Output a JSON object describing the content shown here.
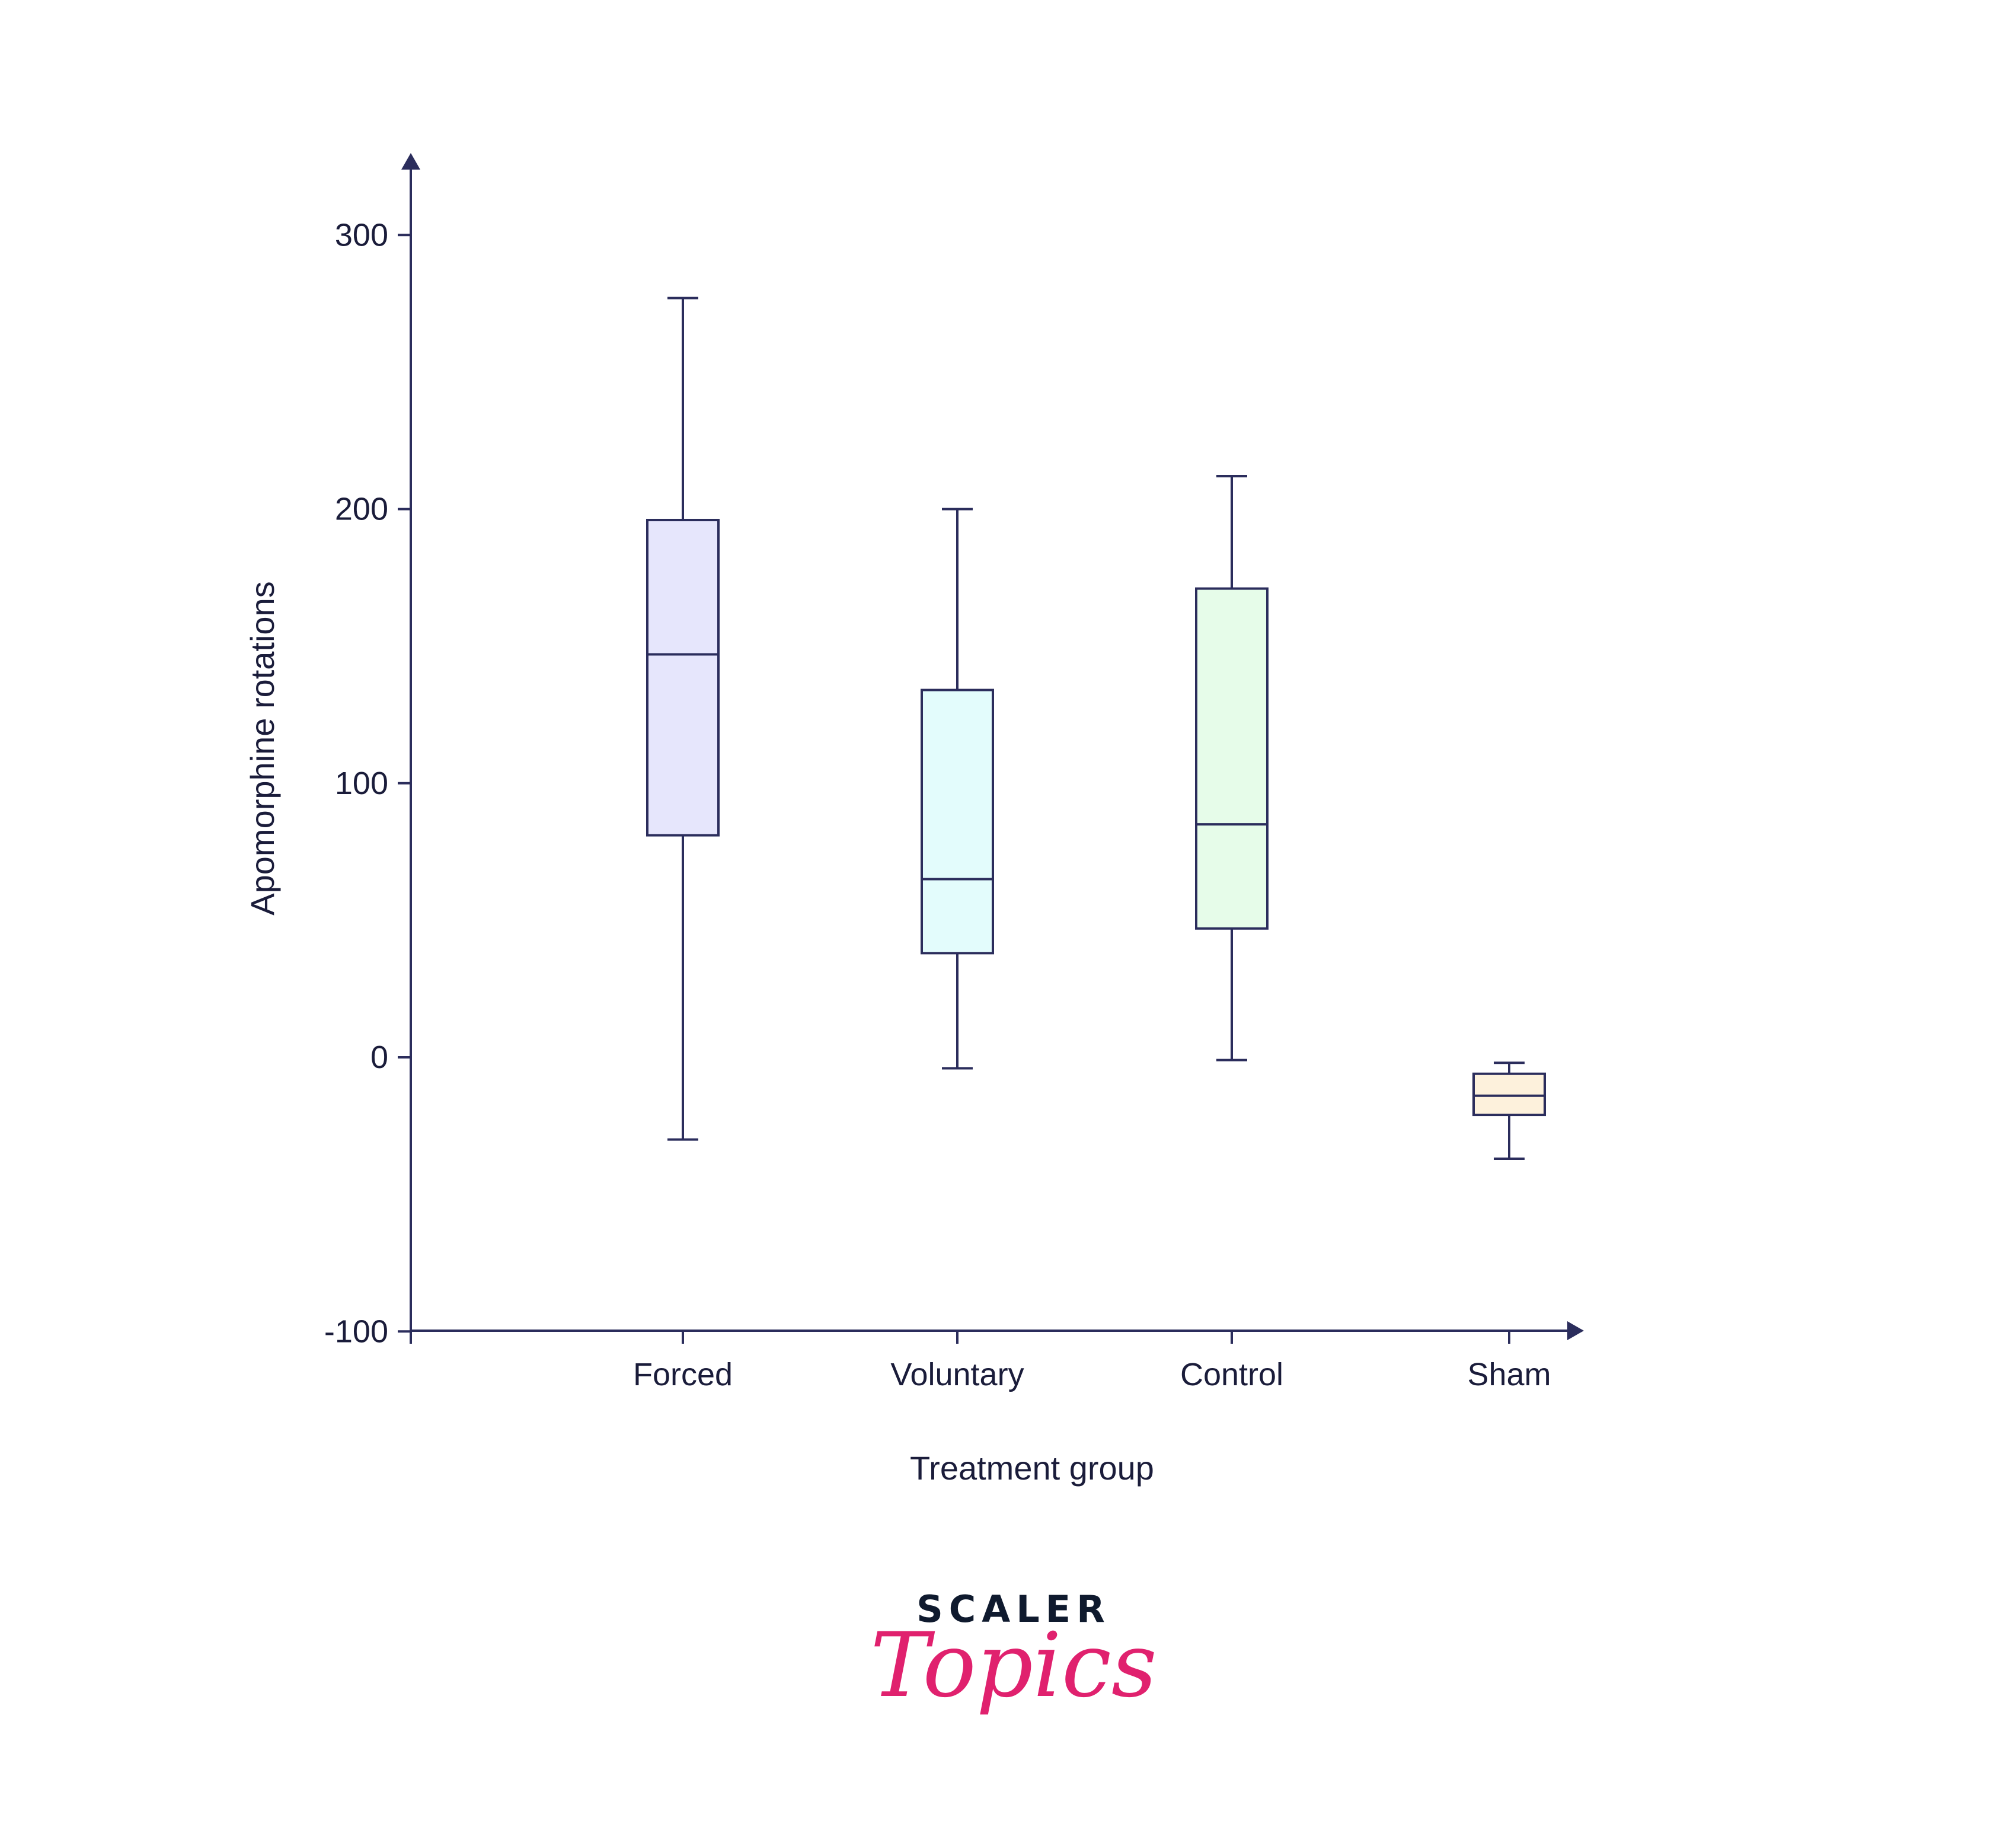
{
  "colors": {
    "ink": "#2b2d5c",
    "text": "#1a1c3a",
    "brand_dark": "#0f1a2e",
    "brand_pink": "#e0216e"
  },
  "chart_data": {
    "type": "box",
    "xlabel": "Treatment group",
    "ylabel": "Apomorphine rotations",
    "ylim": [
      -100,
      330
    ],
    "yticks": [
      -100,
      0,
      100,
      200,
      300
    ],
    "ytick_labels": [
      "-100",
      "0",
      "100",
      "200",
      "300"
    ],
    "categories": [
      "Forced",
      "Voluntary",
      "Control",
      "Sham"
    ],
    "boxes": [
      {
        "category": "Forced",
        "min": -30,
        "q1": 81,
        "median": 147,
        "q3": 196,
        "max": 277,
        "fill": "#e6e6fc"
      },
      {
        "category": "Voluntary",
        "min": -4,
        "q1": 38,
        "median": 65,
        "q3": 134,
        "max": 200,
        "fill": "#e3fcfc"
      },
      {
        "category": "Control",
        "min": -1,
        "q1": 47,
        "median": 85,
        "q3": 171,
        "max": 212,
        "fill": "#e6fce9"
      },
      {
        "category": "Sham",
        "min": -37,
        "q1": -21,
        "median": -14,
        "q3": -6,
        "max": -2,
        "fill": "#fdf1dc"
      }
    ],
    "grid": false,
    "legend": "none"
  },
  "brand": {
    "name": "SCALER",
    "script": "Topics"
  }
}
